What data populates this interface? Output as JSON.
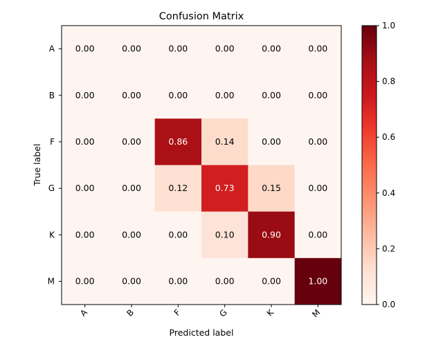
{
  "chart_data": {
    "type": "heatmap",
    "title": "Confusion Matrix",
    "xlabel": "Predicted label",
    "ylabel": "True label",
    "x_categories": [
      "A",
      "B",
      "F",
      "G",
      "K",
      "M"
    ],
    "y_categories": [
      "A",
      "B",
      "F",
      "G",
      "K",
      "M"
    ],
    "values": [
      [
        0.0,
        0.0,
        0.0,
        0.0,
        0.0,
        0.0
      ],
      [
        0.0,
        0.0,
        0.0,
        0.0,
        0.0,
        0.0
      ],
      [
        0.0,
        0.0,
        0.86,
        0.14,
        0.0,
        0.0
      ],
      [
        0.0,
        0.0,
        0.12,
        0.73,
        0.15,
        0.0
      ],
      [
        0.0,
        0.0,
        0.0,
        0.1,
        0.9,
        0.0
      ],
      [
        0.0,
        0.0,
        0.0,
        0.0,
        0.0,
        1.0
      ]
    ],
    "value_format": "2 decimals",
    "colormap": "Reds",
    "colorbar": {
      "range": [
        0.0,
        1.0
      ],
      "ticks": [
        "0.0",
        "0.2",
        "0.4",
        "0.6",
        "0.8",
        "1.0"
      ]
    },
    "text_color_light": "#ffffff",
    "text_color_dark": "#000000"
  }
}
